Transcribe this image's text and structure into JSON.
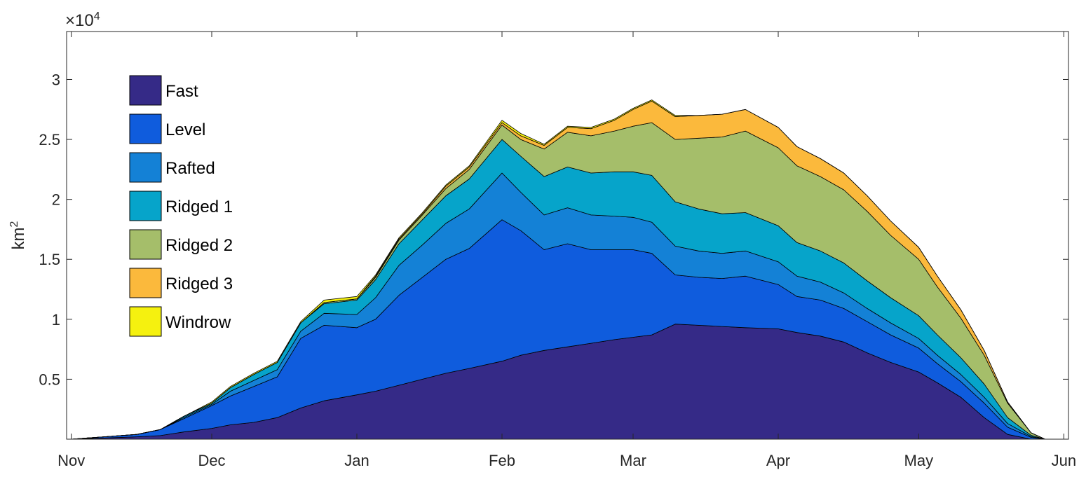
{
  "chart_data": {
    "type": "area",
    "stacked": true,
    "ylabel": "km",
    "ylabel_superscript": "2",
    "y_exponent_label": "×10",
    "y_exponent": "4",
    "ylim": [
      0,
      34000
    ],
    "yticks": [
      {
        "value": 5000,
        "label": "0.5"
      },
      {
        "value": 10000,
        "label": "1"
      },
      {
        "value": 15000,
        "label": "1.5"
      },
      {
        "value": 20000,
        "label": "2"
      },
      {
        "value": 25000,
        "label": "2.5"
      },
      {
        "value": 30000,
        "label": "3"
      }
    ],
    "xlim": [
      "2000-10-31",
      "2001-06-02"
    ],
    "xticks": [
      {
        "date": "2000-11-01",
        "label": "Nov"
      },
      {
        "date": "2000-12-01",
        "label": "Dec"
      },
      {
        "date": "2001-01-01",
        "label": "Jan"
      },
      {
        "date": "2001-02-01",
        "label": "Feb"
      },
      {
        "date": "2001-03-01",
        "label": "Mar"
      },
      {
        "date": "2001-04-01",
        "label": "Apr"
      },
      {
        "date": "2001-05-01",
        "label": "May"
      },
      {
        "date": "2001-06-01",
        "label": "Jun"
      }
    ],
    "legend_position": "top-left",
    "grid": false,
    "x": [
      "2000-11-01",
      "2000-11-08",
      "2000-11-15",
      "2000-11-20",
      "2000-11-25",
      "2000-12-01",
      "2000-12-05",
      "2000-12-10",
      "2000-12-15",
      "2000-12-20",
      "2000-12-25",
      "2001-01-01",
      "2001-01-05",
      "2001-01-10",
      "2001-01-15",
      "2001-01-20",
      "2001-01-25",
      "2001-02-01",
      "2001-02-05",
      "2001-02-10",
      "2001-02-15",
      "2001-02-20",
      "2001-02-25",
      "2001-03-01",
      "2001-03-05",
      "2001-03-10",
      "2001-03-15",
      "2001-03-20",
      "2001-03-25",
      "2001-04-01",
      "2001-04-05",
      "2001-04-10",
      "2001-04-15",
      "2001-04-20",
      "2001-04-25",
      "2001-05-01",
      "2001-05-05",
      "2001-05-10",
      "2001-05-15",
      "2001-05-20",
      "2001-05-25",
      "2001-05-28"
    ],
    "series": [
      {
        "name": "Fast",
        "color": "#352a87",
        "values": [
          0,
          100,
          200,
          300,
          600,
          900,
          1200,
          1400,
          1800,
          2600,
          3200,
          3700,
          4000,
          4500,
          5000,
          5500,
          5900,
          6500,
          7000,
          7400,
          7700,
          8000,
          8300,
          8500,
          8700,
          9600,
          9500,
          9400,
          9300,
          9200,
          8900,
          8600,
          8100,
          7200,
          6400,
          5600,
          4700,
          3500,
          1800,
          400,
          0,
          0
        ]
      },
      {
        "name": "Level",
        "color": "#0f5cdd",
        "values": [
          0,
          100,
          200,
          500,
          1100,
          1900,
          2400,
          3000,
          3400,
          5800,
          6300,
          5600,
          6000,
          7500,
          8500,
          9500,
          10000,
          11800,
          10400,
          8400,
          8600,
          7800,
          7500,
          7300,
          6800,
          4100,
          4000,
          4000,
          4300,
          3700,
          3000,
          3000,
          2800,
          2600,
          2300,
          2000,
          1600,
          1300,
          1200,
          600,
          150,
          0
        ]
      },
      {
        "name": "Rafted",
        "color": "#1481d6",
        "values": [
          0,
          0,
          0,
          0,
          100,
          100,
          400,
          500,
          600,
          600,
          1000,
          1100,
          1800,
          2500,
          2700,
          3000,
          3300,
          3900,
          3200,
          2900,
          3000,
          2900,
          2800,
          2700,
          2600,
          2400,
          2200,
          2100,
          2100,
          1900,
          1700,
          1500,
          1300,
          1100,
          1000,
          800,
          700,
          600,
          500,
          300,
          80,
          0
        ]
      },
      {
        "name": "Ridged 1",
        "color": "#06a4ca",
        "values": [
          0,
          0,
          0,
          0,
          100,
          100,
          300,
          500,
          600,
          700,
          800,
          1200,
          1500,
          1800,
          2100,
          2300,
          2500,
          2800,
          3000,
          3200,
          3400,
          3500,
          3700,
          3800,
          3900,
          3700,
          3500,
          3300,
          3200,
          3000,
          2800,
          2600,
          2500,
          2300,
          2100,
          1900,
          1700,
          1400,
          1100,
          500,
          100,
          0
        ]
      },
      {
        "name": "Ridged 2",
        "color": "#a5be6a",
        "values": [
          0,
          0,
          0,
          0,
          0,
          0,
          0,
          0,
          0,
          0,
          100,
          100,
          200,
          300,
          400,
          600,
          800,
          1200,
          1400,
          2300,
          2900,
          3100,
          3400,
          3800,
          4400,
          5200,
          5900,
          6400,
          6800,
          6500,
          6400,
          6200,
          6100,
          5800,
          5200,
          4700,
          4000,
          3300,
          2400,
          1200,
          200,
          0
        ]
      },
      {
        "name": "Ridged 3",
        "color": "#fbb93c",
        "values": [
          0,
          0,
          0,
          0,
          0,
          0,
          0,
          0,
          0,
          0,
          0,
          0,
          100,
          100,
          100,
          200,
          200,
          200,
          300,
          300,
          400,
          600,
          900,
          1400,
          1800,
          1900,
          1900,
          1900,
          1800,
          1700,
          1600,
          1500,
          1400,
          1300,
          1200,
          1000,
          900,
          700,
          400,
          100,
          0,
          0
        ]
      },
      {
        "name": "Windrow",
        "color": "#f5f10f",
        "values": [
          0,
          0,
          0,
          0,
          0,
          100,
          100,
          100,
          100,
          100,
          200,
          200,
          100,
          100,
          100,
          100,
          100,
          200,
          200,
          100,
          100,
          100,
          100,
          100,
          100,
          100,
          0,
          0,
          0,
          0,
          0,
          0,
          0,
          0,
          0,
          0,
          0,
          0,
          0,
          0,
          0,
          0
        ]
      }
    ]
  }
}
